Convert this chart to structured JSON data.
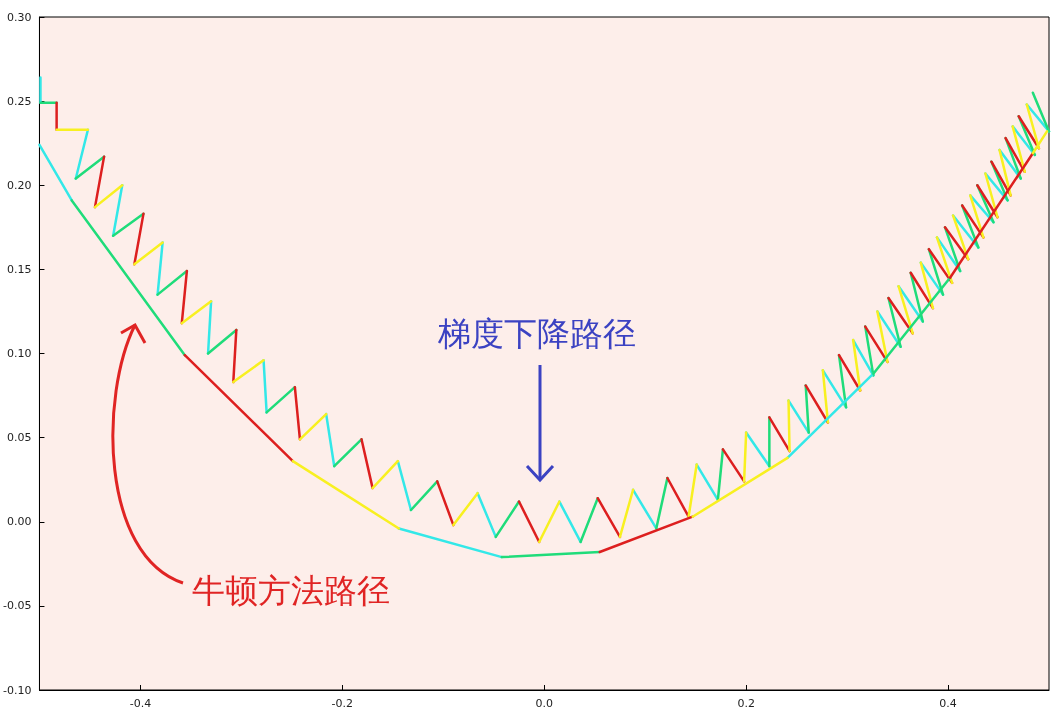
{
  "chart_data": {
    "type": "line",
    "xlim": [
      -0.5,
      0.5
    ],
    "xticks": [
      -0.4,
      -0.2,
      {
        "value": 0,
        "label": "0.0"
      },
      0.2,
      0.4
    ],
    "ylim": [
      -0.1,
      0.3
    ],
    "yticks": [
      {
        "value": -0.1,
        "label": "-0.10"
      },
      -0.05,
      {
        "value": 0,
        "label": "0.00"
      },
      0.05,
      {
        "value": 0.1,
        "label": "0.10"
      },
      0.15,
      {
        "value": 0.2,
        "label": "0.20"
      },
      0.25,
      {
        "value": 0.3,
        "label": "0.30"
      }
    ],
    "annotations": [
      "梯度下降路径",
      "牛顿方法路径"
    ],
    "series": [
      {
        "color": "#33e8e8",
        "x": [
          -0.499,
          -0.499,
          null,
          -0.452,
          -0.464,
          null,
          -0.418,
          -0.427,
          null,
          -0.378,
          -0.383,
          null,
          -0.33,
          -0.333,
          null,
          -0.278,
          -0.275,
          null,
          -0.216,
          -0.208,
          null,
          -0.145,
          -0.132,
          null,
          -0.066,
          -0.048,
          null,
          0.015,
          0.036,
          null,
          0.088,
          0.111,
          null,
          0.151,
          0.172,
          null,
          0.2,
          0.223,
          null,
          0.242,
          0.262,
          null,
          0.276,
          0.299,
          null,
          0.306,
          0.326,
          null,
          0.33,
          0.353,
          null,
          0.351,
          0.375,
          null,
          0.373,
          0.395,
          null,
          0.389,
          0.412,
          null,
          0.405,
          0.43,
          null,
          0.422,
          0.445,
          null,
          0.437,
          0.459,
          null,
          0.451,
          0.472,
          null,
          0.464,
          0.486,
          null,
          0.478,
          0.5
        ],
        "values": [
          0.264,
          0.249,
          null,
          0.233,
          0.204,
          null,
          0.2,
          0.17,
          null,
          0.166,
          0.135,
          null,
          0.131,
          0.1,
          null,
          0.096,
          0.065,
          null,
          0.064,
          0.033,
          null,
          0.036,
          0.007,
          null,
          0.017,
          -0.009,
          null,
          0.012,
          -0.012,
          null,
          0.019,
          -0.004,
          null,
          0.034,
          0.013,
          null,
          0.053,
          0.033,
          null,
          0.072,
          0.053,
          null,
          0.09,
          0.068,
          null,
          0.108,
          0.087,
          null,
          0.125,
          0.104,
          null,
          0.14,
          0.119,
          null,
          0.154,
          0.135,
          null,
          0.169,
          0.149,
          null,
          0.182,
          0.163,
          null,
          0.194,
          0.178,
          null,
          0.207,
          0.191,
          null,
          0.221,
          0.204,
          null,
          0.235,
          0.218,
          null,
          0.248,
          0.232
        ]
      },
      {
        "color": "#1fdc7a",
        "x": [
          -0.499,
          -0.483,
          null,
          -0.464,
          -0.436,
          null,
          -0.427,
          -0.397,
          null,
          -0.383,
          -0.354,
          null,
          -0.333,
          -0.305,
          null,
          -0.275,
          -0.247,
          null,
          -0.208,
          -0.181,
          null,
          -0.132,
          -0.106,
          null,
          -0.048,
          -0.025,
          null,
          0.036,
          0.053,
          null,
          0.111,
          0.122,
          null,
          0.172,
          0.177,
          null,
          0.223,
          0.223,
          null,
          0.262,
          0.259,
          null,
          0.299,
          0.292,
          null,
          0.326,
          0.318,
          null,
          0.353,
          0.341,
          null,
          0.375,
          0.363,
          null,
          0.395,
          0.381,
          null,
          0.412,
          0.397,
          null,
          0.43,
          0.414,
          null,
          0.445,
          0.429,
          null,
          0.459,
          0.443,
          null,
          0.472,
          0.457,
          null,
          0.486,
          0.47,
          null,
          0.5,
          0.484
        ],
        "values": [
          0.249,
          0.249,
          null,
          0.204,
          0.217,
          null,
          0.17,
          0.183,
          null,
          0.135,
          0.149,
          null,
          0.1,
          0.114,
          null,
          0.065,
          0.08,
          null,
          0.033,
          0.049,
          null,
          0.007,
          0.024,
          null,
          -0.009,
          0.012,
          null,
          -0.012,
          0.014,
          null,
          -0.004,
          0.026,
          null,
          0.013,
          0.043,
          null,
          0.033,
          0.062,
          null,
          0.053,
          0.081,
          null,
          0.068,
          0.099,
          null,
          0.087,
          0.116,
          null,
          0.104,
          0.133,
          null,
          0.119,
          0.148,
          null,
          0.135,
          0.162,
          null,
          0.149,
          0.175,
          null,
          0.163,
          0.188,
          null,
          0.178,
          0.2,
          null,
          0.191,
          0.214,
          null,
          0.204,
          0.228,
          null,
          0.218,
          0.241,
          null,
          0.232,
          0.255
        ]
      },
      {
        "color": "#dd1f1f",
        "x": [
          -0.483,
          -0.483,
          null,
          -0.436,
          -0.445,
          null,
          -0.397,
          -0.406,
          null,
          -0.354,
          -0.359,
          null,
          -0.305,
          -0.308,
          null,
          -0.247,
          -0.242,
          null,
          -0.181,
          -0.17,
          null,
          -0.106,
          -0.09,
          null,
          -0.025,
          -0.005,
          null,
          0.053,
          0.075,
          null,
          0.122,
          0.143,
          null,
          0.177,
          0.198,
          null,
          0.223,
          0.243,
          null,
          0.259,
          0.281,
          null,
          0.292,
          0.313,
          null,
          0.318,
          0.34,
          null,
          0.341,
          0.365,
          null,
          0.363,
          0.385,
          null,
          0.381,
          0.404,
          null,
          0.397,
          0.42,
          null,
          0.414,
          0.435,
          null,
          0.429,
          0.449,
          null,
          0.443,
          0.462,
          null,
          0.457,
          0.476,
          null,
          0.47,
          0.49
        ],
        "values": [
          0.249,
          0.233,
          null,
          0.217,
          0.187,
          null,
          0.183,
          0.153,
          null,
          0.149,
          0.118,
          null,
          0.114,
          0.083,
          null,
          0.08,
          0.049,
          null,
          0.049,
          0.02,
          null,
          0.024,
          -0.002,
          null,
          0.012,
          -0.012,
          null,
          0.014,
          -0.009,
          null,
          0.026,
          0.003,
          null,
          0.043,
          0.024,
          null,
          0.062,
          0.042,
          null,
          0.081,
          0.059,
          null,
          0.099,
          0.078,
          null,
          0.116,
          0.095,
          null,
          0.133,
          0.112,
          null,
          0.148,
          0.127,
          null,
          0.162,
          0.142,
          null,
          0.175,
          0.156,
          null,
          0.188,
          0.169,
          null,
          0.2,
          0.181,
          null,
          0.214,
          0.194,
          null,
          0.228,
          0.208,
          null,
          0.241,
          0.222
        ]
      },
      {
        "color": "#f8f020",
        "x": [
          -0.483,
          -0.452,
          null,
          -0.445,
          -0.418,
          null,
          -0.406,
          -0.378,
          null,
          -0.359,
          -0.33,
          null,
          -0.308,
          -0.278,
          null,
          -0.242,
          -0.216,
          null,
          -0.17,
          -0.145,
          null,
          -0.09,
          -0.066,
          null,
          -0.005,
          0.015,
          null,
          0.075,
          0.088,
          null,
          0.143,
          0.151,
          null,
          0.198,
          0.2,
          null,
          0.243,
          0.242,
          null,
          0.281,
          0.276,
          null,
          0.313,
          0.306,
          null,
          0.34,
          0.33,
          null,
          0.365,
          0.351,
          null,
          0.385,
          0.373,
          null,
          0.404,
          0.389,
          null,
          0.42,
          0.405,
          null,
          0.435,
          0.422,
          null,
          0.449,
          0.437,
          null,
          0.462,
          0.451,
          null,
          0.476,
          0.464,
          null,
          0.49,
          0.478
        ],
        "values": [
          0.233,
          0.233,
          null,
          0.187,
          0.2,
          null,
          0.153,
          0.166,
          null,
          0.118,
          0.131,
          null,
          0.083,
          0.096,
          null,
          0.049,
          0.064,
          null,
          0.02,
          0.036,
          null,
          -0.002,
          0.017,
          null,
          -0.012,
          0.012,
          null,
          -0.009,
          0.019,
          null,
          0.003,
          0.034,
          null,
          0.024,
          0.053,
          null,
          0.042,
          0.072,
          null,
          0.059,
          0.09,
          null,
          0.078,
          0.108,
          null,
          0.095,
          0.125,
          null,
          0.112,
          0.14,
          null,
          0.127,
          0.154,
          null,
          0.142,
          0.169,
          null,
          0.156,
          0.182,
          null,
          0.169,
          0.194,
          null,
          0.181,
          0.207,
          null,
          0.194,
          0.221,
          null,
          0.208,
          0.235,
          null,
          0.222,
          0.248
        ]
      },
      {
        "color": "#33e8e8",
        "x": [
          -0.5,
          -0.468,
          null,
          -0.144,
          -0.042,
          null,
          0.241,
          0.326
        ],
        "values": [
          0.224,
          0.191,
          null,
          -0.004,
          -0.021,
          null,
          0.038,
          0.088
        ]
      },
      {
        "color": "#1fdc7a",
        "x": [
          -0.468,
          -0.356,
          null,
          -0.042,
          0.055,
          null,
          0.326,
          0.402
        ],
        "values": [
          0.191,
          0.099,
          null,
          -0.021,
          -0.018,
          null,
          0.088,
          0.145
        ]
      },
      {
        "color": "#dd1f1f",
        "x": [
          -0.356,
          -0.249,
          null,
          0.055,
          0.147,
          null,
          0.402,
          0.484
        ],
        "values": [
          0.099,
          0.036,
          null,
          -0.018,
          0.003,
          null,
          0.145,
          0.219
        ]
      },
      {
        "color": "#f8f020",
        "x": [
          -0.249,
          -0.144,
          null,
          0.147,
          0.241,
          null,
          0.484,
          0.498
        ],
        "values": [
          0.036,
          -0.004,
          null,
          0.003,
          0.038,
          null,
          0.219,
          0.232
        ]
      }
    ]
  }
}
